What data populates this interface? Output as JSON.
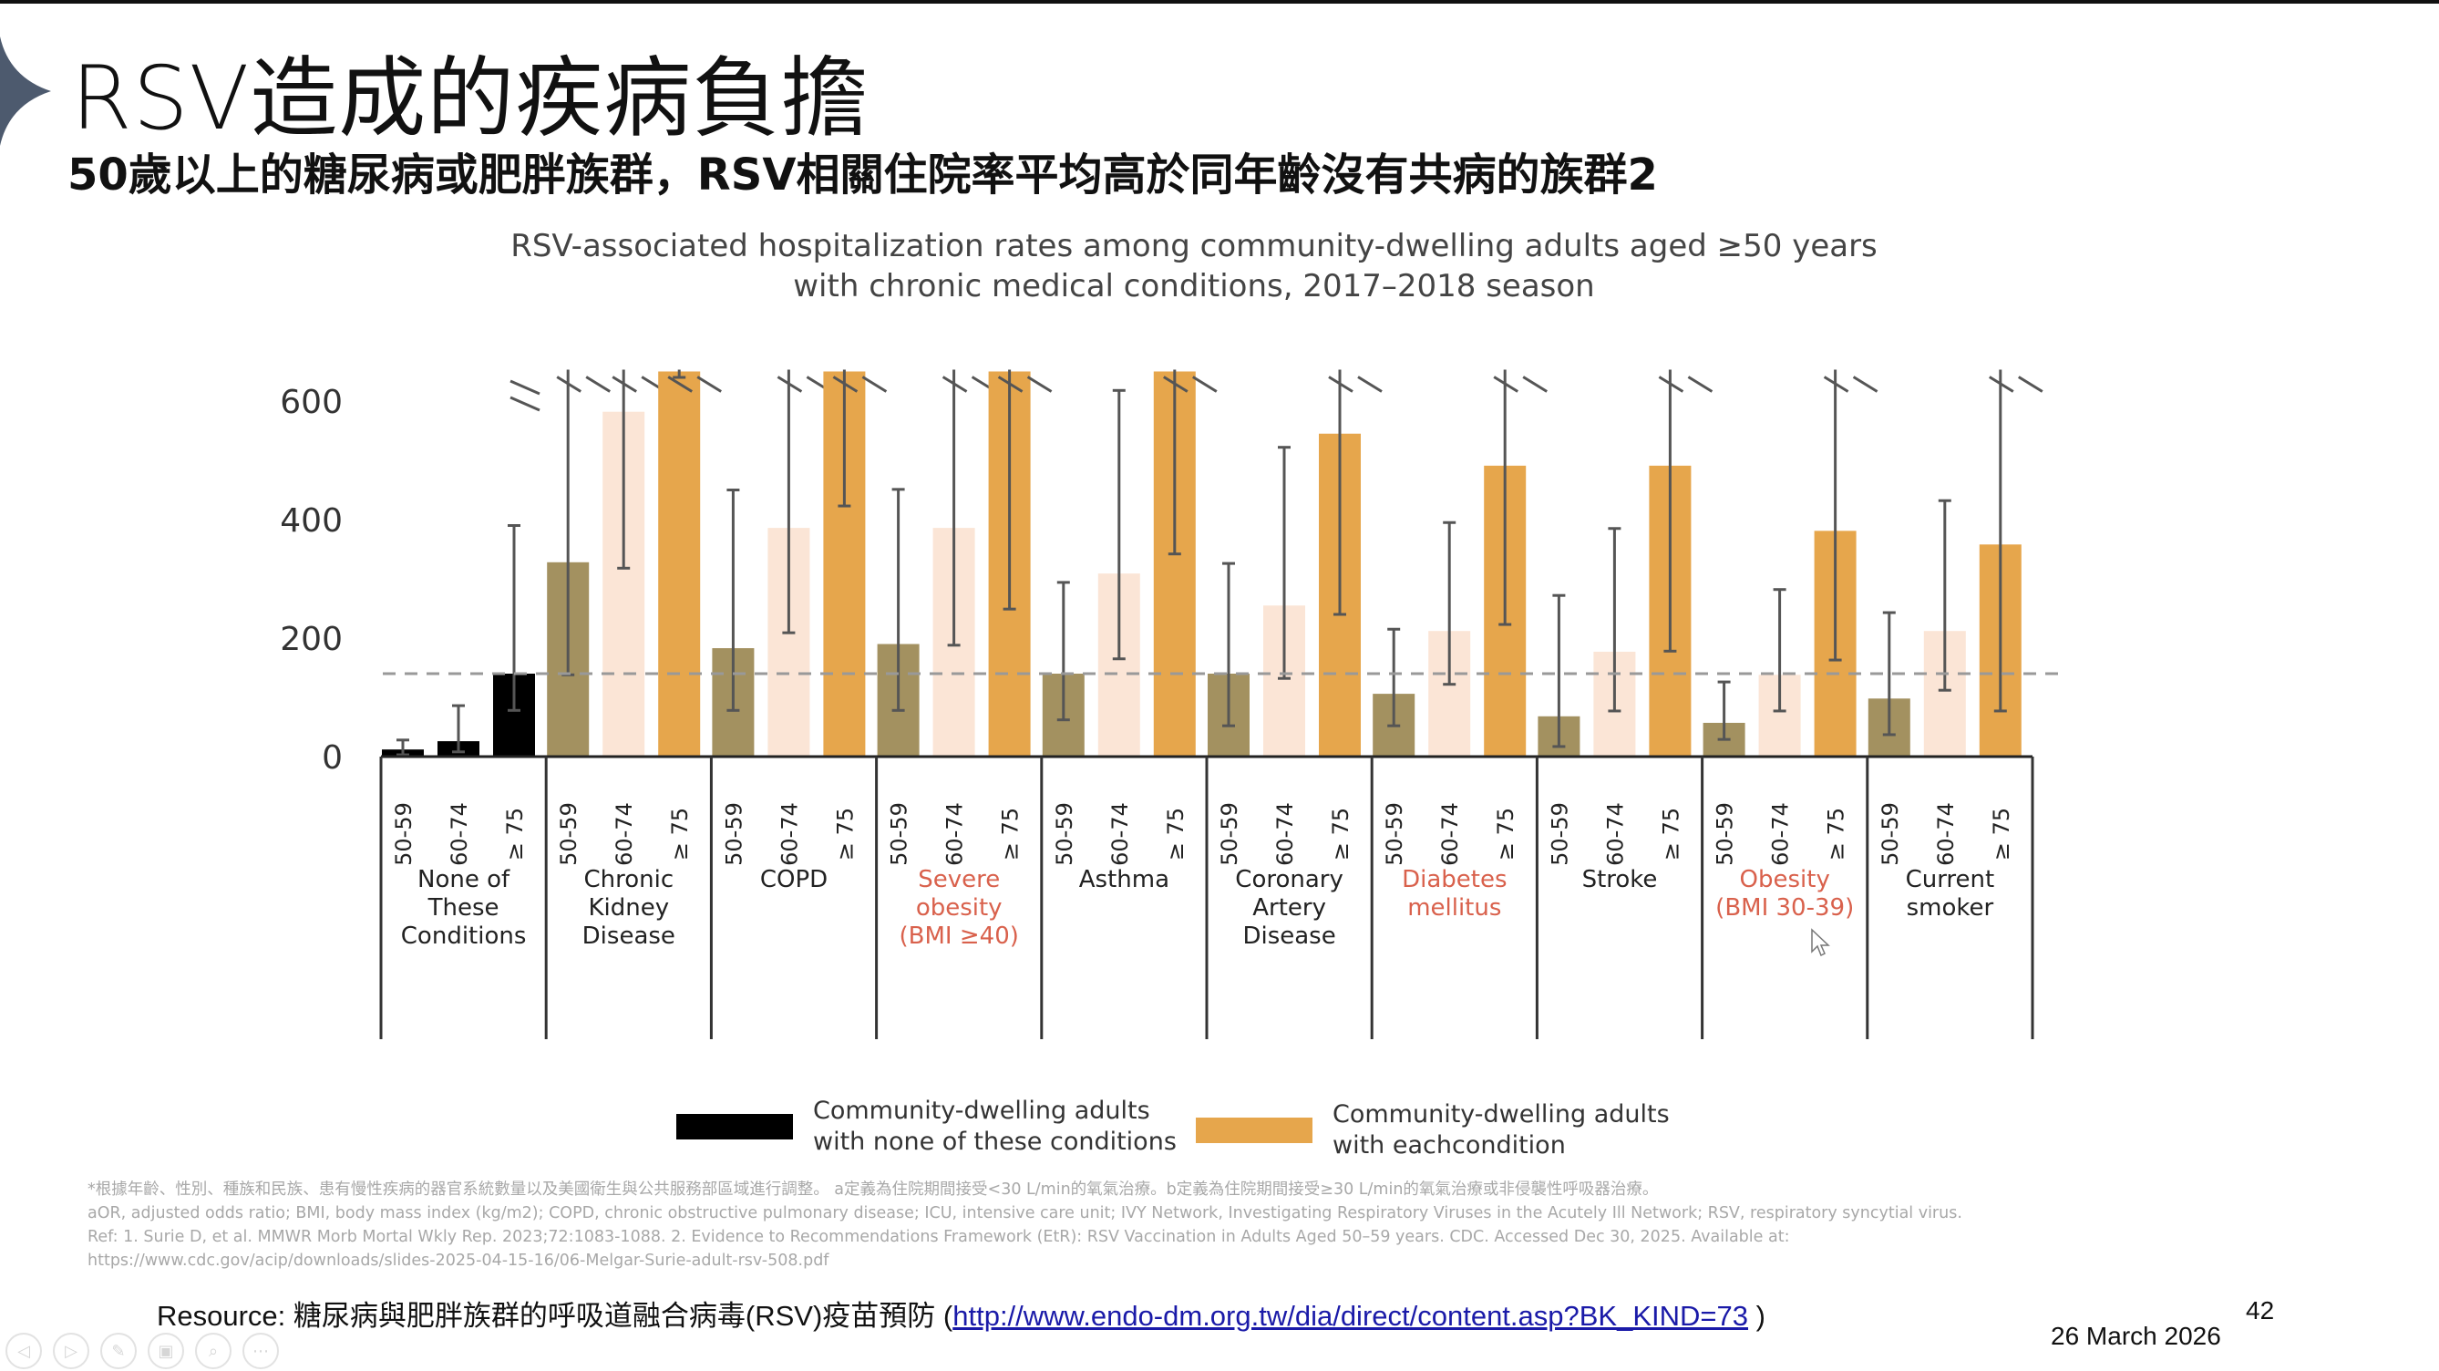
{
  "slide": {
    "title": "RSV造成的疾病負擔",
    "subtitle": "50歲以上的糖尿病或肥胖族群，RSV相關住院率平均高於同年齡沒有共病的族群2",
    "page_number": "42",
    "date": "26 March 2026"
  },
  "chart_data": {
    "type": "bar",
    "title_line1": "RSV-associated hospitalization rates among community-dwelling adults aged ≥50 years",
    "title_line2": "with chronic medical conditions, 2017–2018 season",
    "ylim": [
      0,
      650
    ],
    "yticks": [
      "0",
      "200",
      "400",
      "600"
    ],
    "ytick_values": [
      0,
      200,
      400,
      600
    ],
    "reference_line": 140,
    "age_groups": [
      "50-59",
      "60-74",
      "≥ 75"
    ],
    "groups": [
      {
        "label": [
          "None of",
          "These",
          "Conditions"
        ],
        "highlight": false,
        "values": [
          12,
          26,
          140
        ],
        "err_low": [
          3,
          8,
          78
        ],
        "err_high": [
          28,
          86,
          390
        ],
        "broken_bar": [
          false,
          false,
          false
        ],
        "broken_err": [
          false,
          false,
          false
        ]
      },
      {
        "label": [
          "Chronic",
          "Kidney",
          "Disease"
        ],
        "highlight": false,
        "values": [
          328,
          582,
          650
        ],
        "err_low": [
          138,
          318,
          640
        ],
        "err_high": [
          650,
          650,
          650
        ],
        "broken_bar": [
          false,
          false,
          true
        ],
        "broken_err": [
          true,
          true,
          true
        ]
      },
      {
        "label": [
          "COPD"
        ],
        "highlight": false,
        "values": [
          183,
          386,
          650
        ],
        "err_low": [
          78,
          209,
          423
        ],
        "err_high": [
          450,
          650,
          650
        ],
        "broken_bar": [
          false,
          false,
          true
        ],
        "broken_err": [
          false,
          true,
          true
        ]
      },
      {
        "label": [
          "Severe",
          "obesity",
          "(BMI ≥40)"
        ],
        "highlight": true,
        "values": [
          190,
          386,
          650
        ],
        "err_low": [
          78,
          188,
          249
        ],
        "err_high": [
          451,
          650,
          650
        ],
        "broken_bar": [
          false,
          false,
          true
        ],
        "broken_err": [
          false,
          true,
          true
        ]
      },
      {
        "label": [
          "Asthma"
        ],
        "highlight": false,
        "values": [
          140,
          309,
          650
        ],
        "err_low": [
          62,
          165,
          342
        ],
        "err_high": [
          294,
          618,
          650
        ],
        "broken_bar": [
          false,
          false,
          true
        ],
        "broken_err": [
          false,
          false,
          true
        ]
      },
      {
        "label": [
          "Coronary",
          "Artery",
          "Disease"
        ],
        "highlight": false,
        "values": [
          140,
          255,
          545
        ],
        "err_low": [
          52,
          132,
          240
        ],
        "err_high": [
          326,
          522,
          650
        ],
        "broken_bar": [
          false,
          false,
          false
        ],
        "broken_err": [
          false,
          false,
          true
        ]
      },
      {
        "label": [
          "Diabetes",
          "mellitus"
        ],
        "highlight": true,
        "values": [
          106,
          212,
          491
        ],
        "err_low": [
          52,
          122,
          223
        ],
        "err_high": [
          215,
          395,
          650
        ],
        "broken_bar": [
          false,
          false,
          false
        ],
        "broken_err": [
          false,
          false,
          true
        ]
      },
      {
        "label": [
          "Stroke"
        ],
        "highlight": false,
        "values": [
          68,
          177,
          491
        ],
        "err_low": [
          17,
          77,
          178
        ],
        "err_high": [
          272,
          385,
          650
        ],
        "broken_bar": [
          false,
          false,
          false
        ],
        "broken_err": [
          false,
          false,
          true
        ]
      },
      {
        "label": [
          "Obesity",
          "(BMI 30-39)"
        ],
        "highlight": true,
        "values": [
          57,
          138,
          381
        ],
        "err_low": [
          29,
          77,
          163
        ],
        "err_high": [
          126,
          282,
          650
        ],
        "broken_bar": [
          false,
          false,
          false
        ],
        "broken_err": [
          false,
          false,
          true
        ]
      },
      {
        "label": [
          "Current",
          "smoker"
        ],
        "highlight": false,
        "values": [
          98,
          212,
          358
        ],
        "err_low": [
          37,
          112,
          77
        ],
        "err_high": [
          243,
          432,
          650
        ],
        "broken_bar": [
          false,
          false,
          false
        ],
        "broken_err": [
          false,
          false,
          true
        ]
      }
    ],
    "colors": {
      "none": "#000000",
      "age_50_59": "#a39160",
      "age_60_74": "#fbe5d6",
      "age_75": "#e6a64c",
      "error_bar": "#555555",
      "reference_line": "#999999",
      "highlight_label": "#d9614c",
      "label": "#222222"
    },
    "legend": [
      {
        "line1": "Community-dwelling adults",
        "line2": "with none of these conditions",
        "color": "#000000"
      },
      {
        "line1": "Community-dwelling adults",
        "line2": "with eachcondition",
        "color": "#e6a64c"
      }
    ]
  },
  "footnotes": [
    "*根據年齡、性別、種族和民族、患有慢性疾病的器官系統數量以及美國衛生與公共服務部區域進行調整。 a定義為住院期間接受<30 L/min的氧氣治療。b定義為住院期間接受≥30 L/min的氧氣治療或非侵襲性呼吸器治療。",
    "aOR, adjusted odds ratio; BMI, body mass index (kg/m2); COPD, chronic obstructive pulmonary disease; ICU, intensive care unit; IVY Network, Investigating Respiratory Viruses in the Acutely Ill Network; RSV, respiratory syncytial virus.",
    "Ref: 1. Surie D, et al. MMWR Morb Mortal Wkly Rep. 2023;72:1083-1088. 2. Evidence to Recommendations Framework (EtR): RSV Vaccination in Adults Aged 50–59 years. CDC. Accessed Dec 30, 2025. Available at:",
    "https://www.cdc.gov/acip/downloads/slides-2025-04-15-16/06-Melgar-Surie-adult-rsv-508.pdf"
  ],
  "resource": {
    "prefix": "Resource: 糖尿病與肥胖族群的呼吸道融合病毒(RSV)疫苗預防 (",
    "link_text": "http://www.endo-dm.org.tw/dia/direct/content.asp?BK_KIND=73",
    "suffix": " )"
  },
  "nav_icons": [
    "previous-icon",
    "next-icon",
    "pen-icon",
    "slides-icon",
    "zoom-icon",
    "more-icon"
  ]
}
